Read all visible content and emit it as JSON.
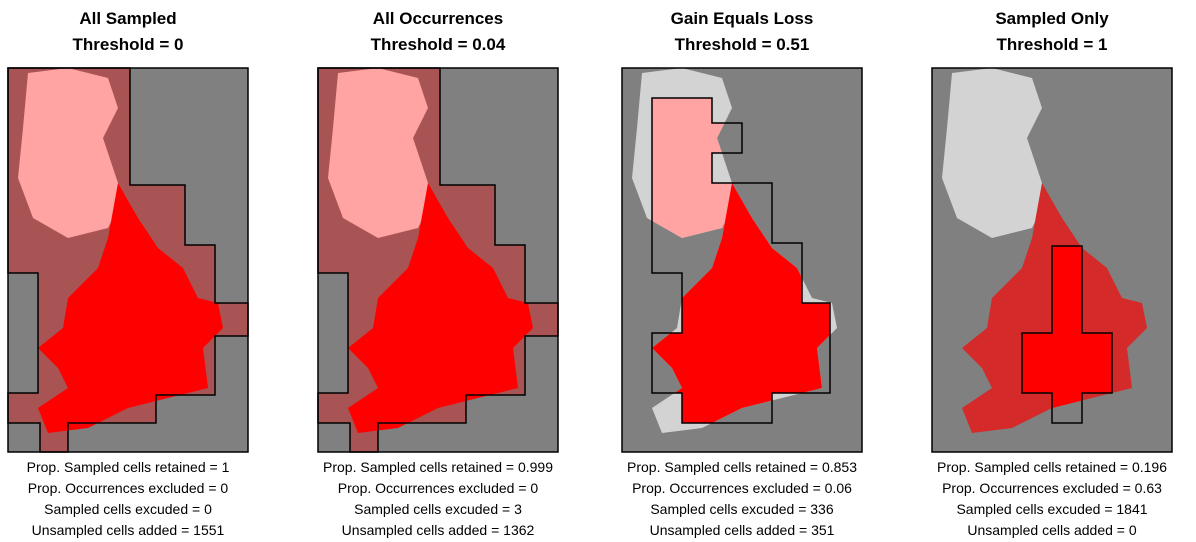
{
  "panels": [
    {
      "title": "All Sampled",
      "threshold": "Threshold =  0",
      "stats": [
        "Prop. Sampled cells retained = 1",
        "Prop. Occurrences excluded = 0",
        "Sampled cells excuded = 0",
        "Unsampled cells added = 1551"
      ]
    },
    {
      "title": "All Occurrences",
      "threshold": "Threshold =  0.04",
      "stats": [
        "Prop. Sampled cells retained = 0.999",
        "Prop. Occurrences excluded = 0",
        "Sampled cells excuded = 3",
        "Unsampled cells added = 1362"
      ]
    },
    {
      "title": "Gain Equals Loss",
      "threshold": "Threshold =  0.51",
      "stats": [
        "Prop. Sampled cells retained = 0.853",
        "Prop. Occurrences excluded = 0.06",
        "Sampled cells excuded = 336",
        "Unsampled cells added = 351"
      ]
    },
    {
      "title": "Sampled Only",
      "threshold": "Threshold =  1",
      "stats": [
        "Prop. Sampled cells retained = 0.196",
        "Prop. Occurrences excluded = 0.63",
        "Sampled cells excuded = 1841",
        "Unsampled cells added = 0"
      ]
    }
  ]
}
